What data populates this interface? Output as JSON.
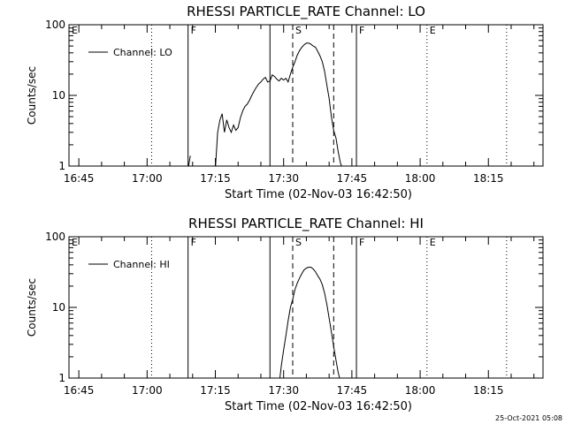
{
  "footer": "25-Oct-2021 05:08",
  "chart_data": [
    {
      "type": "line",
      "title": "RHESSI PARTICLE_RATE Channel: LO",
      "xlabel": "Start Time (02-Nov-03 16:42:50)",
      "ylabel": "Counts/sec",
      "y_scale": "log",
      "ylim": [
        1,
        100
      ],
      "xlim": [
        "16:42:50",
        "18:27:00"
      ],
      "x_ticks": [
        "16:45",
        "17:00",
        "17:15",
        "17:30",
        "17:45",
        "18:00",
        "18:15"
      ],
      "y_ticks": [
        "1",
        "10",
        "100"
      ],
      "legend": {
        "label": "Channel: LO",
        "position": "top-left"
      },
      "markers": [
        {
          "label": "E",
          "time": "16:42:50",
          "style": "dotted"
        },
        {
          "label": "",
          "time": "17:01:00",
          "style": "dotted"
        },
        {
          "label": "F",
          "time": "17:09:00",
          "style": "solid"
        },
        {
          "label": "",
          "time": "17:27:00",
          "style": "solid"
        },
        {
          "label": "S",
          "time": "17:32:00",
          "style": "dashed"
        },
        {
          "label": "",
          "time": "17:41:00",
          "style": "dashed"
        },
        {
          "label": "F",
          "time": "17:46:00",
          "style": "solid"
        },
        {
          "label": "E",
          "time": "18:01:30",
          "style": "dotted"
        },
        {
          "label": "",
          "time": "18:19:00",
          "style": "dotted"
        }
      ],
      "series": [
        {
          "segments": [
            {
              "x": [
                "17:09:00",
                "17:09:30"
              ],
              "y": [
                0.9,
                1.4
              ]
            },
            {
              "x": [
                "17:15:00",
                "17:15:30",
                "17:16:00",
                "17:16:30",
                "17:17:00",
                "17:17:30",
                "17:18:00",
                "17:18:30",
                "17:19:00",
                "17:19:30",
                "17:20:00",
                "17:20:30",
                "17:21:00",
                "17:21:30",
                "17:22:00",
                "17:22:30",
                "17:23:00",
                "17:23:30",
                "17:24:00",
                "17:24:30",
                "17:25:00",
                "17:25:30",
                "17:26:00",
                "17:26:30",
                "17:27:00",
                "17:27:30",
                "17:28:00",
                "17:28:30",
                "17:29:00",
                "17:29:30",
                "17:30:00",
                "17:30:30",
                "17:31:00",
                "17:31:30",
                "17:32:00",
                "17:32:30",
                "17:33:00",
                "17:33:30",
                "17:34:00",
                "17:34:30",
                "17:35:00",
                "17:35:30",
                "17:36:00",
                "17:36:30",
                "17:37:00",
                "17:37:30",
                "17:38:00",
                "17:38:30",
                "17:39:00",
                "17:39:30",
                "17:40:00",
                "17:40:30",
                "17:41:00",
                "17:41:30",
                "17:42:00",
                "17:42:30",
                "17:43:00",
                "17:43:30"
              ],
              "y": [
                0.9,
                3.0,
                4.5,
                5.5,
                3.0,
                4.5,
                3.5,
                3.0,
                3.8,
                3.2,
                3.5,
                4.8,
                6.0,
                7.0,
                7.5,
                8.5,
                10.0,
                11.5,
                13.0,
                14.5,
                15.5,
                17.0,
                18.0,
                15.5,
                16.0,
                19.5,
                18.5,
                17.0,
                16.0,
                17.5,
                16.5,
                17.5,
                15.5,
                20.0,
                25.0,
                30.0,
                37.0,
                43.0,
                48.0,
                52.0,
                55.0,
                55.0,
                53.0,
                50.0,
                48.0,
                42.0,
                36.0,
                30.0,
                22.0,
                14.0,
                9.0,
                5.0,
                3.2,
                2.5,
                1.6,
                1.1,
                0.9,
                0.8
              ]
            }
          ]
        }
      ]
    },
    {
      "type": "line",
      "title": "RHESSI PARTICLE_RATE Channel: HI",
      "xlabel": "Start Time (02-Nov-03 16:42:50)",
      "ylabel": "Counts/sec",
      "y_scale": "log",
      "ylim": [
        1,
        100
      ],
      "xlim": [
        "16:42:50",
        "18:27:00"
      ],
      "x_ticks": [
        "16:45",
        "17:00",
        "17:15",
        "17:30",
        "17:45",
        "18:00",
        "18:15"
      ],
      "y_ticks": [
        "1",
        "10",
        "100"
      ],
      "legend": {
        "label": "Channel: HI",
        "position": "top-left"
      },
      "markers": [
        {
          "label": "E",
          "time": "16:42:50",
          "style": "dotted"
        },
        {
          "label": "",
          "time": "17:01:00",
          "style": "dotted"
        },
        {
          "label": "F",
          "time": "17:09:00",
          "style": "solid"
        },
        {
          "label": "",
          "time": "17:27:00",
          "style": "solid"
        },
        {
          "label": "S",
          "time": "17:32:00",
          "style": "dashed"
        },
        {
          "label": "",
          "time": "17:41:00",
          "style": "dashed"
        },
        {
          "label": "F",
          "time": "17:46:00",
          "style": "solid"
        },
        {
          "label": "E",
          "time": "18:01:30",
          "style": "dotted"
        },
        {
          "label": "",
          "time": "18:19:00",
          "style": "dotted"
        }
      ],
      "series": [
        {
          "segments": [
            {
              "x": [
                "17:29:00",
                "17:29:30",
                "17:30:00",
                "17:30:30",
                "17:31:00",
                "17:31:30",
                "17:32:00",
                "17:32:30",
                "17:33:00",
                "17:33:30",
                "17:34:00",
                "17:34:30",
                "17:35:00",
                "17:35:30",
                "17:36:00",
                "17:36:30",
                "17:37:00",
                "17:37:30",
                "17:38:00",
                "17:38:30",
                "17:39:00",
                "17:39:30",
                "17:40:00",
                "17:40:30",
                "17:41:00",
                "17:41:30",
                "17:42:00",
                "17:42:30",
                "17:43:00"
              ],
              "y": [
                0.8,
                1.5,
                2.5,
                4.0,
                6.5,
                10.0,
                13.0,
                18.0,
                22.0,
                26.0,
                30.0,
                34.0,
                36.0,
                37.0,
                37.0,
                35.0,
                32.0,
                28.0,
                25.0,
                21.0,
                16.0,
                11.0,
                7.0,
                4.5,
                2.8,
                1.8,
                1.2,
                0.9,
                0.8
              ]
            }
          ]
        }
      ]
    }
  ]
}
